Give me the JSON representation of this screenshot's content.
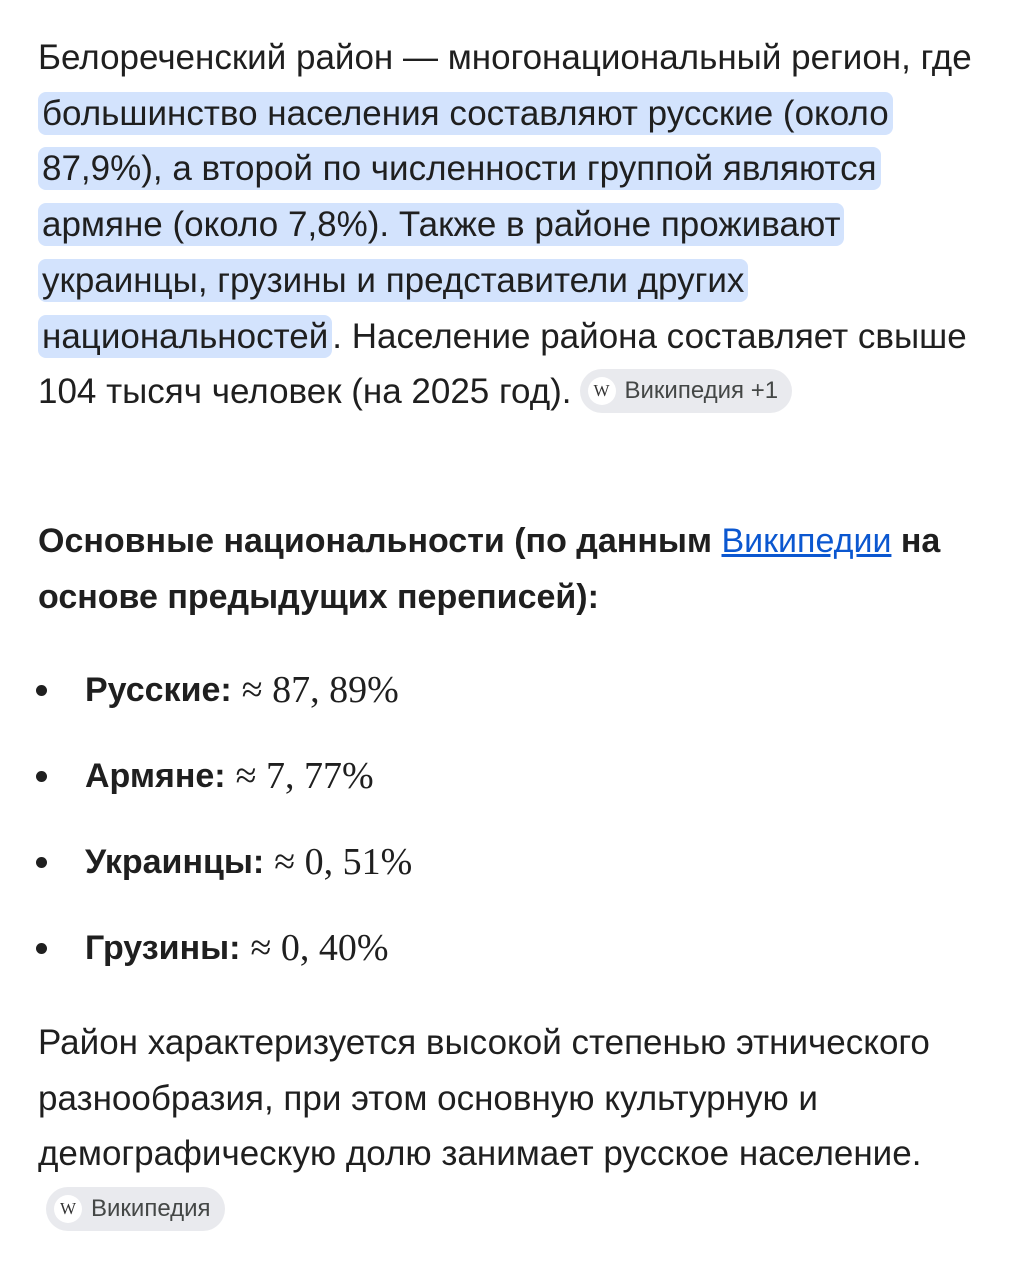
{
  "intro": {
    "before": "Белореченский район — многонациональный регион, где ",
    "highlight": "большинство населения составляют русские (около 87,9%), а второй по численности группой являются армяне (около 7,8%). Также в районе проживают украинцы, грузины и представители других национальностей",
    "after": ". Население района составляет свыше 104 тысяч человек (на 2025 год).",
    "source_chip": "Википедия +1"
  },
  "heading": {
    "before": "Основные национальности (по данным ",
    "link": "Википедии",
    "after": " на основе предыдущих переписей):"
  },
  "nationalities": [
    {
      "label": "Русские:",
      "value": "≈ 87, 89%"
    },
    {
      "label": "Армяне:",
      "value": "≈ 7, 77%"
    },
    {
      "label": "Украинцы:",
      "value": "≈ 0, 51%"
    },
    {
      "label": "Грузины:",
      "value": "≈ 0, 40%"
    }
  ],
  "conclusion": {
    "text": "Район характеризуется высокой степенью этнического разнообразия, при этом основную культурную и демографическую долю занимает русское население.",
    "source_chip": "Википедия"
  },
  "colors": {
    "highlight": "#d3e3fd",
    "link": "#0b57d0",
    "chip": "#e9eaee"
  }
}
